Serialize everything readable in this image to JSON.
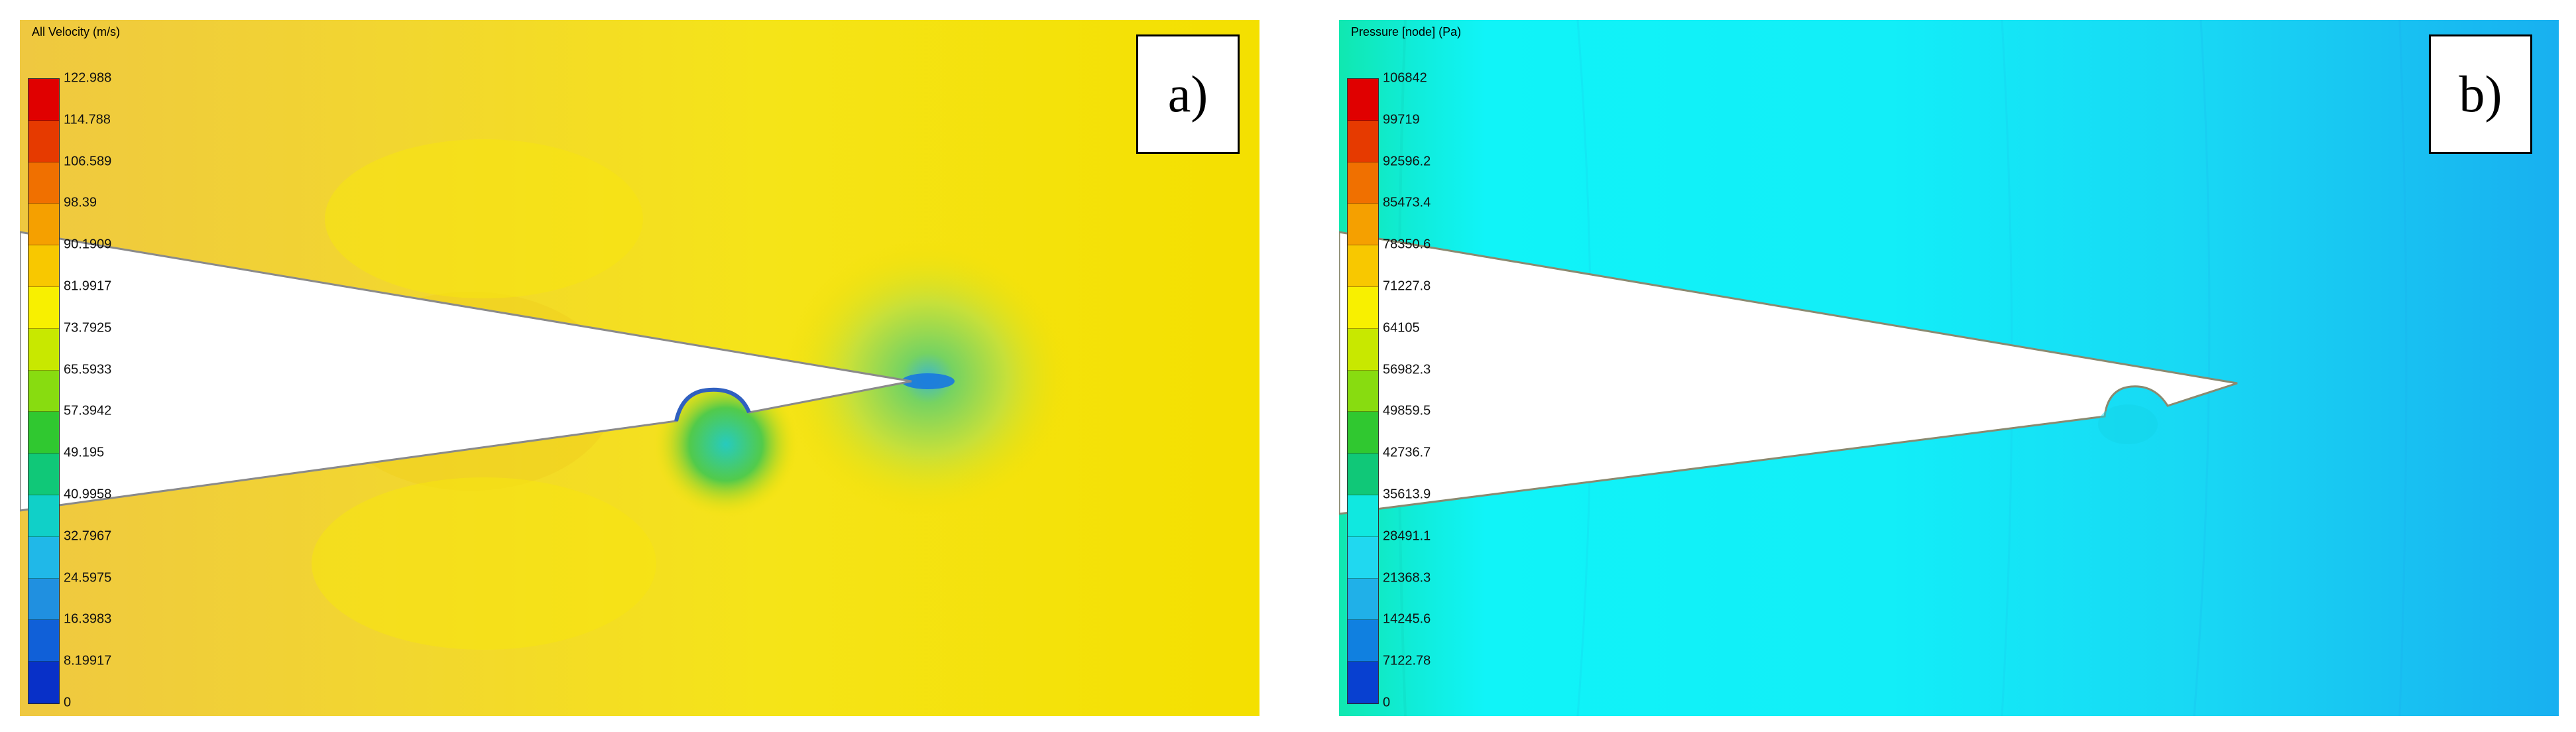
{
  "panels": [
    {
      "id": "a",
      "label": "a)",
      "legend": {
        "title": "All Velocity (m/s)",
        "ticks": [
          "122.988",
          "114.788",
          "106.589",
          "98.39",
          "90.1909",
          "81.9917",
          "73.7925",
          "65.5933",
          "57.3942",
          "49.195",
          "40.9958",
          "32.7967",
          "24.5975",
          "16.3983",
          "8.19917",
          "0"
        ],
        "colors": [
          "#e00000",
          "#e63a00",
          "#f07000",
          "#f5a000",
          "#f8c800",
          "#f8f000",
          "#c8e800",
          "#88dc10",
          "#30c830",
          "#10c878",
          "#10d0c8",
          "#20b8e8",
          "#2090e0",
          "#1060d8",
          "#0830c8",
          "#0010b8"
        ]
      },
      "field": {
        "background": "#f5e000",
        "region_colors": [
          "#f0c840",
          "#e8d820",
          "#b8d850",
          "#50a0e8"
        ]
      }
    },
    {
      "id": "b",
      "label": "b)",
      "legend": {
        "title": "Pressure [node] (Pa)",
        "ticks": [
          "106842",
          "99719",
          "92596.2",
          "85473.4",
          "78350.6",
          "71227.8",
          "64105",
          "56982.3",
          "49859.5",
          "42736.7",
          "35613.9",
          "28491.1",
          "21368.3",
          "14245.6",
          "7122.78",
          "0"
        ],
        "colors": [
          "#e00000",
          "#e63a00",
          "#f07000",
          "#f5a000",
          "#f8c800",
          "#f8f000",
          "#c8e800",
          "#88dc10",
          "#30c830",
          "#10c878",
          "#10e8e0",
          "#20d8f0",
          "#20b0e8",
          "#1080e0",
          "#0840d0",
          "#0010b8"
        ]
      },
      "field": {
        "background": "#10f0f8",
        "region_colors": [
          "#10e8b0",
          "#20d8f0",
          "#10c8f0",
          "#18b0f0"
        ]
      }
    }
  ]
}
